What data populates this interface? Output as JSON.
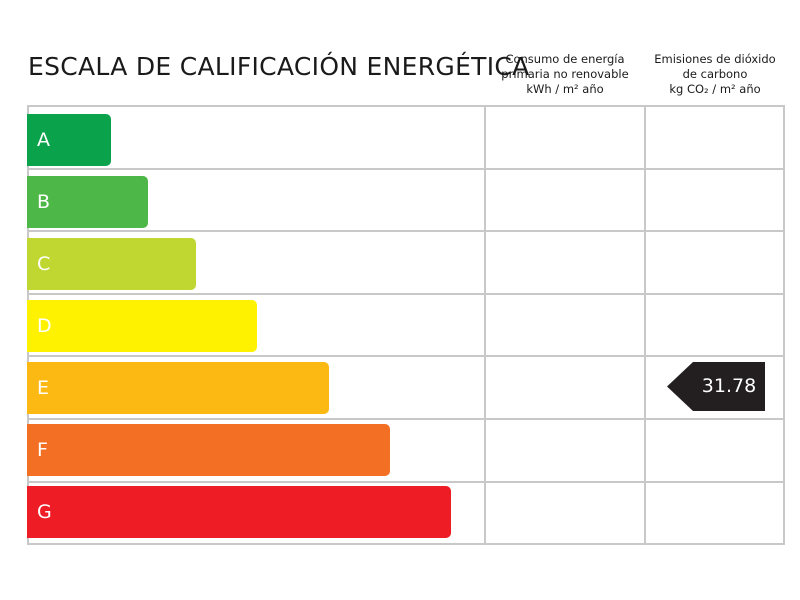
{
  "title": "ESCALA DE CALIFICACIÓN ENERGÉTICA",
  "columns": {
    "primary_energy": {
      "line1": "Consumo de energía",
      "line2": "primaria no renovable",
      "line3": "kWh / m² año"
    },
    "co2": {
      "line1": "Emisiones de dióxido",
      "line2": "de carbono",
      "line3": "kg CO₂ / m² año"
    }
  },
  "ratings": [
    {
      "label": "A",
      "color": "#0aa24a"
    },
    {
      "label": "B",
      "color": "#4db848"
    },
    {
      "label": "C",
      "color": "#bfd730"
    },
    {
      "label": "D",
      "color": "#fff200"
    },
    {
      "label": "E",
      "color": "#fdb913"
    },
    {
      "label": "F",
      "color": "#f26f23"
    },
    {
      "label": "G",
      "color": "#ee1c25"
    }
  ],
  "result": {
    "co2": {
      "value": "31.78",
      "rating": "E",
      "color": "#231f20"
    }
  }
}
